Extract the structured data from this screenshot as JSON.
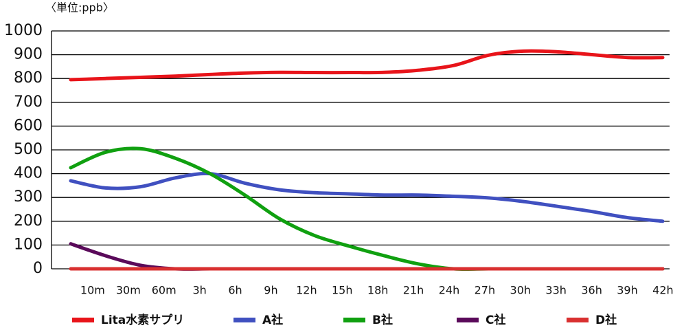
{
  "chart_data": {
    "type": "line",
    "unit_label": "〈単位:ppb〉",
    "categories": [
      null,
      "10m",
      "30m",
      "60m",
      "3h",
      "6h",
      "9h",
      "12h",
      "15h",
      "18h",
      "21h",
      "24h",
      "27h",
      "30h",
      "33h",
      "36h",
      "39h",
      "42h"
    ],
    "series": [
      {
        "name": "Lita水素サプリ",
        "color": "#e8141a",
        "values": [
          795,
          800,
          805,
          810,
          817,
          823,
          826,
          825,
          825,
          826,
          835,
          855,
          898,
          915,
          912,
          900,
          888,
          888
        ]
      },
      {
        "name": "A社",
        "color": "#4050c0",
        "values": [
          370,
          340,
          345,
          382,
          400,
          360,
          332,
          320,
          315,
          310,
          310,
          305,
          298,
          283,
          262,
          240,
          215,
          200
        ]
      },
      {
        "name": "B社",
        "color": "#10a010",
        "values": [
          425,
          490,
          505,
          465,
          400,
          310,
          210,
          140,
          95,
          55,
          20,
          0,
          0,
          0,
          0,
          0,
          0,
          0
        ]
      },
      {
        "name": "C社",
        "color": "#5a0a5a",
        "values": [
          105,
          55,
          15,
          0,
          0,
          0,
          0,
          0,
          0,
          0,
          0,
          0,
          0,
          0,
          0,
          0,
          0,
          0
        ]
      },
      {
        "name": "D社",
        "color": "#d93030",
        "values": [
          0,
          0,
          0,
          0,
          0,
          0,
          0,
          0,
          0,
          0,
          0,
          0,
          0,
          0,
          0,
          0,
          0,
          0
        ]
      }
    ],
    "ylim": [
      0,
      1000
    ],
    "yticks": [
      0,
      100,
      200,
      300,
      400,
      500,
      600,
      700,
      800,
      900,
      1000
    ],
    "grid": true
  }
}
